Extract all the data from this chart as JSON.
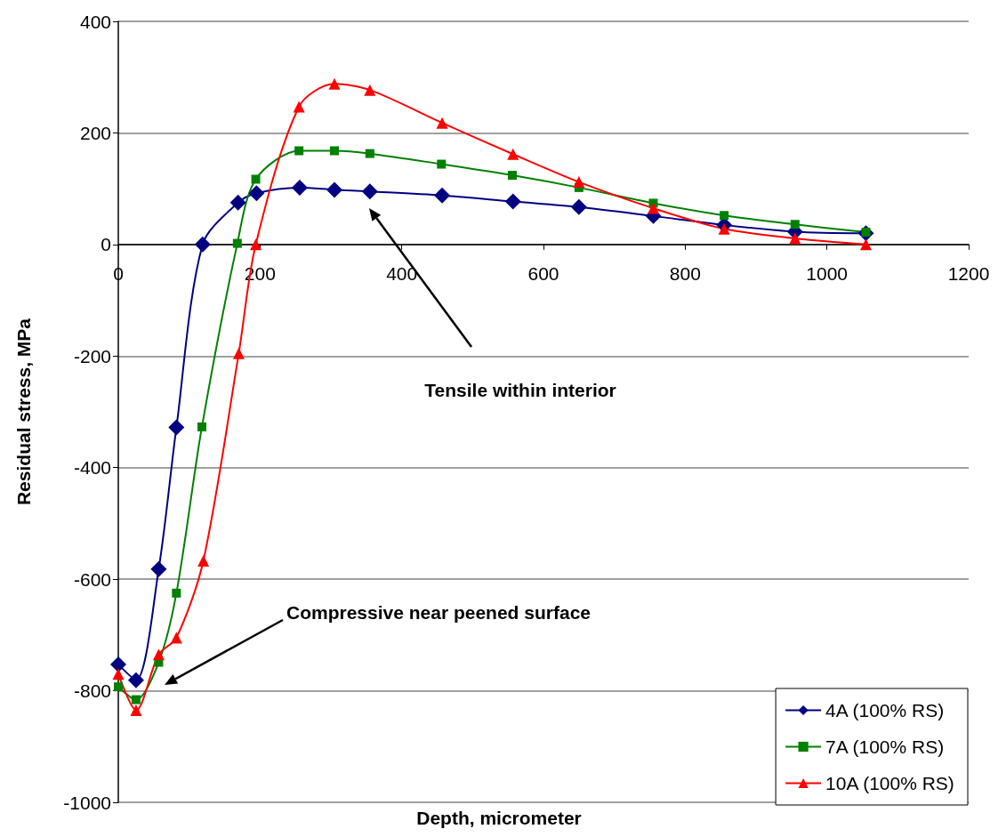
{
  "chart_data": {
    "type": "line",
    "xlabel": "Depth, micrometer",
    "ylabel": "Residual stress, MPa",
    "xlim": [
      0,
      1200
    ],
    "xticks": [
      0,
      200,
      400,
      600,
      800,
      1000,
      1200
    ],
    "ylim": [
      -1000,
      400
    ],
    "yticks": [
      -1000,
      -800,
      -600,
      -400,
      -200,
      0,
      200,
      400
    ],
    "grid": "y",
    "legend": "bottom right",
    "annotations": [
      "Tensile within interior",
      "Compressive near peened surface"
    ],
    "series": [
      {
        "name": "4A (100% RS)",
        "color": "#000080",
        "marker": "diamond",
        "x": [
          0,
          25,
          57,
          82,
          119,
          169,
          195,
          256,
          305,
          355,
          457,
          557,
          650,
          755,
          855,
          955,
          1055
        ],
        "values": [
          -753,
          -781,
          -582,
          -328,
          0,
          75,
          92,
          102,
          98,
          95,
          88,
          77,
          67,
          51,
          35,
          23,
          20
        ]
      },
      {
        "name": "7A (100% RS)",
        "color": "#008000",
        "marker": "square",
        "x": [
          0,
          25,
          57,
          82,
          118,
          168,
          194,
          255,
          305,
          355,
          456,
          556,
          650,
          755,
          855,
          955,
          1055
        ],
        "values": [
          -793,
          -816,
          -749,
          -625,
          -327,
          2,
          117,
          168,
          168,
          163,
          144,
          124,
          102,
          74,
          52,
          36,
          22
        ]
      },
      {
        "name": "10A (100% RS)",
        "color": "#ff0000",
        "marker": "triangle",
        "x": [
          0,
          25,
          57,
          82,
          120,
          170,
          194,
          255,
          305,
          355,
          457,
          557,
          650,
          755,
          855,
          955,
          1055
        ],
        "values": [
          -770,
          -835,
          -735,
          -705,
          -567,
          -195,
          0,
          247,
          288,
          277,
          218,
          162,
          112,
          65,
          28,
          11,
          0
        ]
      }
    ]
  }
}
